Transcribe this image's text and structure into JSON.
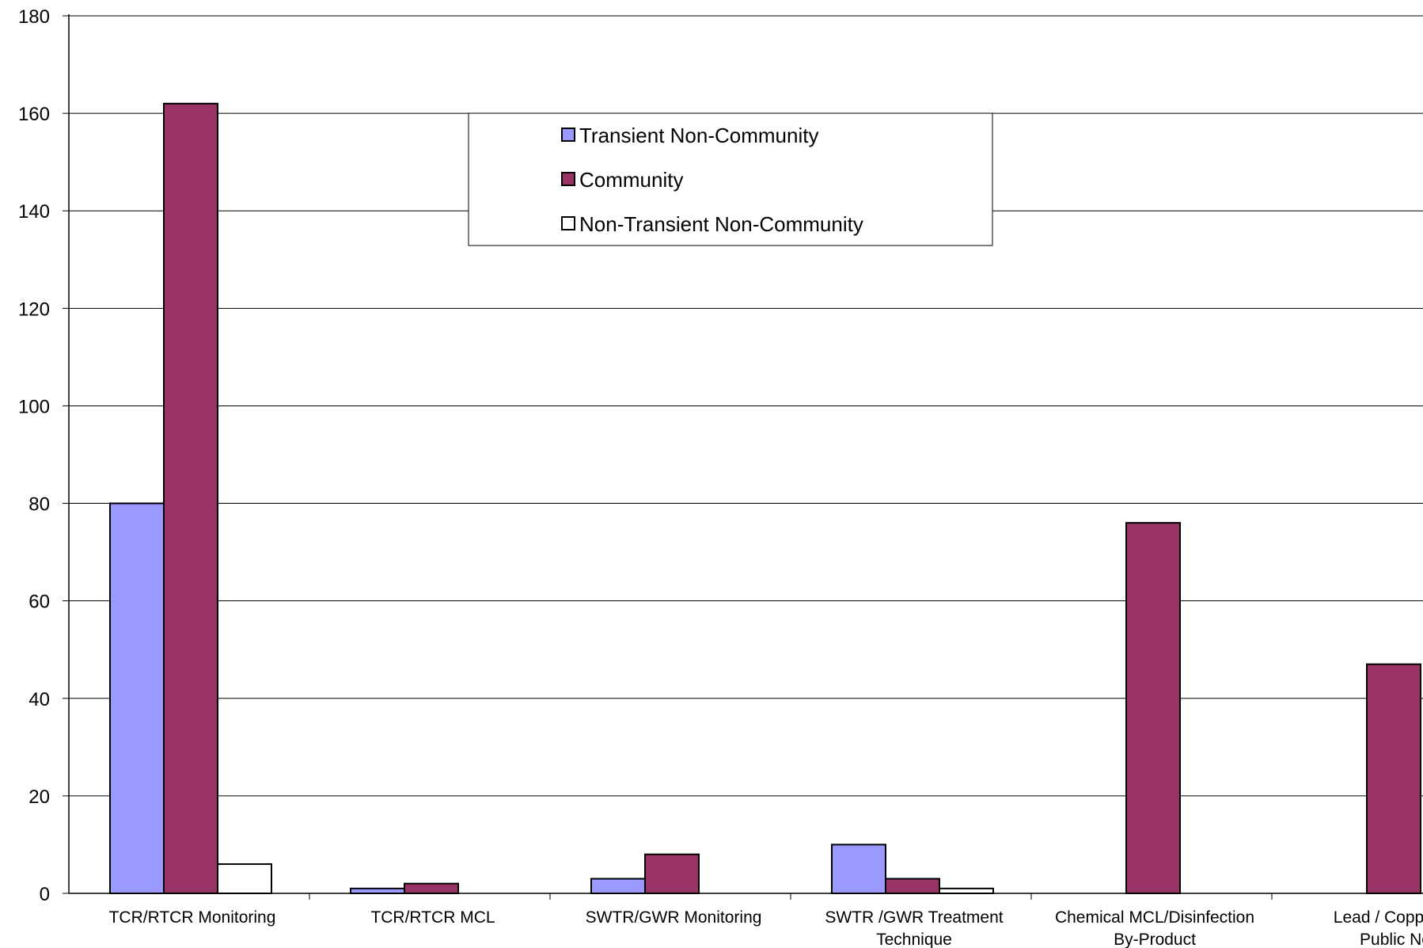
{
  "chart_data": {
    "type": "bar",
    "categories": [
      [
        "TCR/RTCR Monitoring"
      ],
      [
        "TCR/RTCR MCL"
      ],
      [
        "SWTR/GWR Monitoring"
      ],
      [
        "SWTR /GWR Treatment",
        "Technique"
      ],
      [
        "Chemical MCL/Disinfection",
        "By-Product"
      ],
      [
        "Lead / Copper M",
        "Public No"
      ]
    ],
    "series": [
      {
        "name": "Transient Non-Community",
        "color": "#9999ff",
        "values": [
          80,
          1,
          3,
          10,
          0,
          0
        ]
      },
      {
        "name": "Community",
        "color": "#993366",
        "values": [
          162,
          2,
          8,
          3,
          76,
          47
        ]
      },
      {
        "name": "Non-Transient Non-Community",
        "color": "#ffffff",
        "values": [
          6,
          0,
          0,
          1,
          0,
          0
        ]
      }
    ],
    "ylim": [
      0,
      180
    ],
    "yticks": [
      0,
      20,
      40,
      60,
      80,
      100,
      120,
      140,
      160,
      180
    ],
    "grid": true,
    "legend_position": "top-center"
  }
}
